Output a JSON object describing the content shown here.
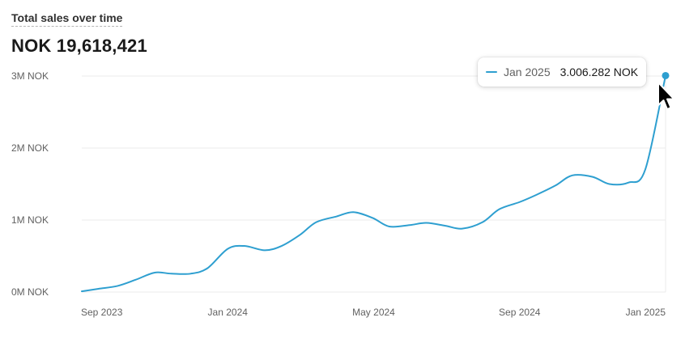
{
  "card": {
    "title": "Total sales over time",
    "total": "NOK 19,618,421"
  },
  "tooltip": {
    "label": "Jan 2025",
    "value": "3.006.282 NOK"
  },
  "colors": {
    "line": "#2e9fd0",
    "grid": "#ebebeb",
    "axis": "#d4d4d4",
    "text": "#303030"
  },
  "cursor_icon": "arrow-cursor-icon",
  "chart_data": {
    "type": "line",
    "title": "Total sales over time",
    "xlabel": "",
    "ylabel": "",
    "x_ticks": [
      "Sep 2023",
      "Jan 2024",
      "May 2024",
      "Sep 2024",
      "Jan 2025"
    ],
    "y_ticks": [
      "0M NOK",
      "1M NOK",
      "2M NOK",
      "3M NOK"
    ],
    "ylim": [
      0,
      3000000
    ],
    "grid": true,
    "x_unit": "days",
    "x_range": [
      "2023-09-01",
      "2025-01-01"
    ],
    "series": [
      {
        "points": [
          {
            "x": "2023-09-01",
            "y": 10000
          },
          {
            "x": "2023-09-15",
            "y": 45000
          },
          {
            "x": "2023-10-01",
            "y": 85000
          },
          {
            "x": "2023-10-16",
            "y": 170000
          },
          {
            "x": "2023-11-01",
            "y": 270000
          },
          {
            "x": "2023-11-15",
            "y": 255000
          },
          {
            "x": "2023-12-01",
            "y": 255000
          },
          {
            "x": "2023-12-15",
            "y": 330000
          },
          {
            "x": "2024-01-01",
            "y": 600000
          },
          {
            "x": "2024-01-15",
            "y": 640000
          },
          {
            "x": "2024-02-01",
            "y": 580000
          },
          {
            "x": "2024-02-15",
            "y": 640000
          },
          {
            "x": "2024-03-01",
            "y": 790000
          },
          {
            "x": "2024-03-15",
            "y": 970000
          },
          {
            "x": "2024-04-01",
            "y": 1050000
          },
          {
            "x": "2024-04-15",
            "y": 1110000
          },
          {
            "x": "2024-05-01",
            "y": 1030000
          },
          {
            "x": "2024-05-15",
            "y": 910000
          },
          {
            "x": "2024-06-01",
            "y": 930000
          },
          {
            "x": "2024-06-15",
            "y": 960000
          },
          {
            "x": "2024-07-01",
            "y": 920000
          },
          {
            "x": "2024-07-15",
            "y": 880000
          },
          {
            "x": "2024-08-01",
            "y": 970000
          },
          {
            "x": "2024-08-15",
            "y": 1150000
          },
          {
            "x": "2024-09-01",
            "y": 1250000
          },
          {
            "x": "2024-09-15",
            "y": 1350000
          },
          {
            "x": "2024-10-01",
            "y": 1480000
          },
          {
            "x": "2024-10-15",
            "y": 1620000
          },
          {
            "x": "2024-11-01",
            "y": 1600000
          },
          {
            "x": "2024-11-15",
            "y": 1500000
          },
          {
            "x": "2024-12-01",
            "y": 1520000
          },
          {
            "x": "2024-12-15",
            "y": 1700000
          },
          {
            "x": "2025-01-01",
            "y": 3006282
          }
        ]
      }
    ],
    "highlighted_point": {
      "x": "2025-01-01",
      "y": 3006282
    }
  }
}
